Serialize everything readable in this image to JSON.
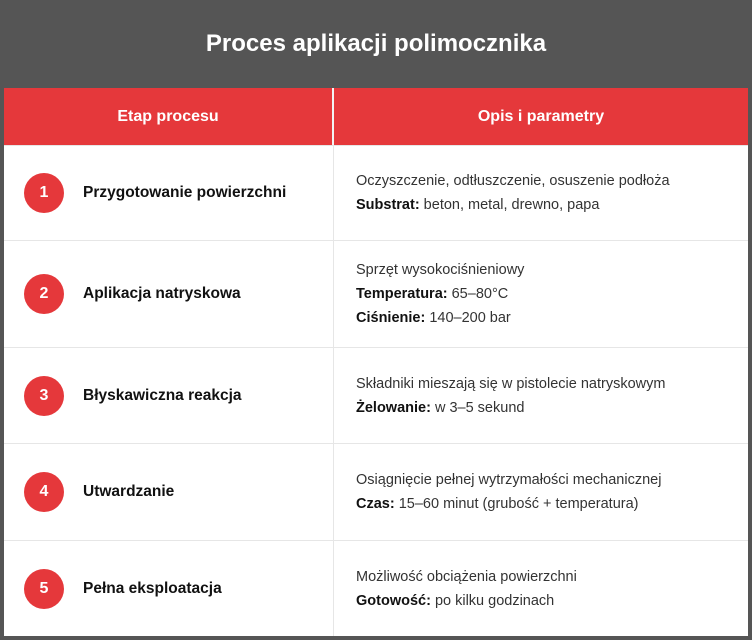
{
  "title": "Proces aplikacji polimocznika",
  "headers": [
    "Etap procesu",
    "Opis i parametry"
  ],
  "rows": [
    {
      "num": "1",
      "step": "Przygotowanie powierzchni",
      "lines": [
        {
          "label": "",
          "text": "Oczyszczenie, odtłuszczenie, osuszenie podłoża"
        },
        {
          "label": "Substrat:",
          "text": " beton, metal, drewno, papa"
        }
      ]
    },
    {
      "num": "2",
      "step": "Aplikacja natryskowa",
      "lines": [
        {
          "label": "",
          "text": "Sprzęt wysokociśnieniowy"
        },
        {
          "label": "Temperatura:",
          "text": " 65–80°C"
        },
        {
          "label": "Ciśnienie:",
          "text": " 140–200 bar"
        }
      ]
    },
    {
      "num": "3",
      "step": "Błyskawiczna reakcja",
      "lines": [
        {
          "label": "",
          "text": "Składniki mieszają się w pistolecie natryskowym"
        },
        {
          "label": "Żelowanie:",
          "text": " w 3–5 sekund"
        }
      ]
    },
    {
      "num": "4",
      "step": "Utwardzanie",
      "lines": [
        {
          "label": "",
          "text": "Osiągnięcie pełnej wytrzymałości mechanicznej"
        },
        {
          "label": "Czas:",
          "text": " 15–60 minut (grubość + temperatura)"
        }
      ]
    },
    {
      "num": "5",
      "step": "Pełna eksploatacja",
      "lines": [
        {
          "label": "",
          "text": "Możliwość obciążenia powierzchni"
        },
        {
          "label": "Gotowość:",
          "text": " po kilku godzinach"
        }
      ]
    }
  ],
  "colors": {
    "accent": "#e5383b",
    "background": "#555555"
  }
}
